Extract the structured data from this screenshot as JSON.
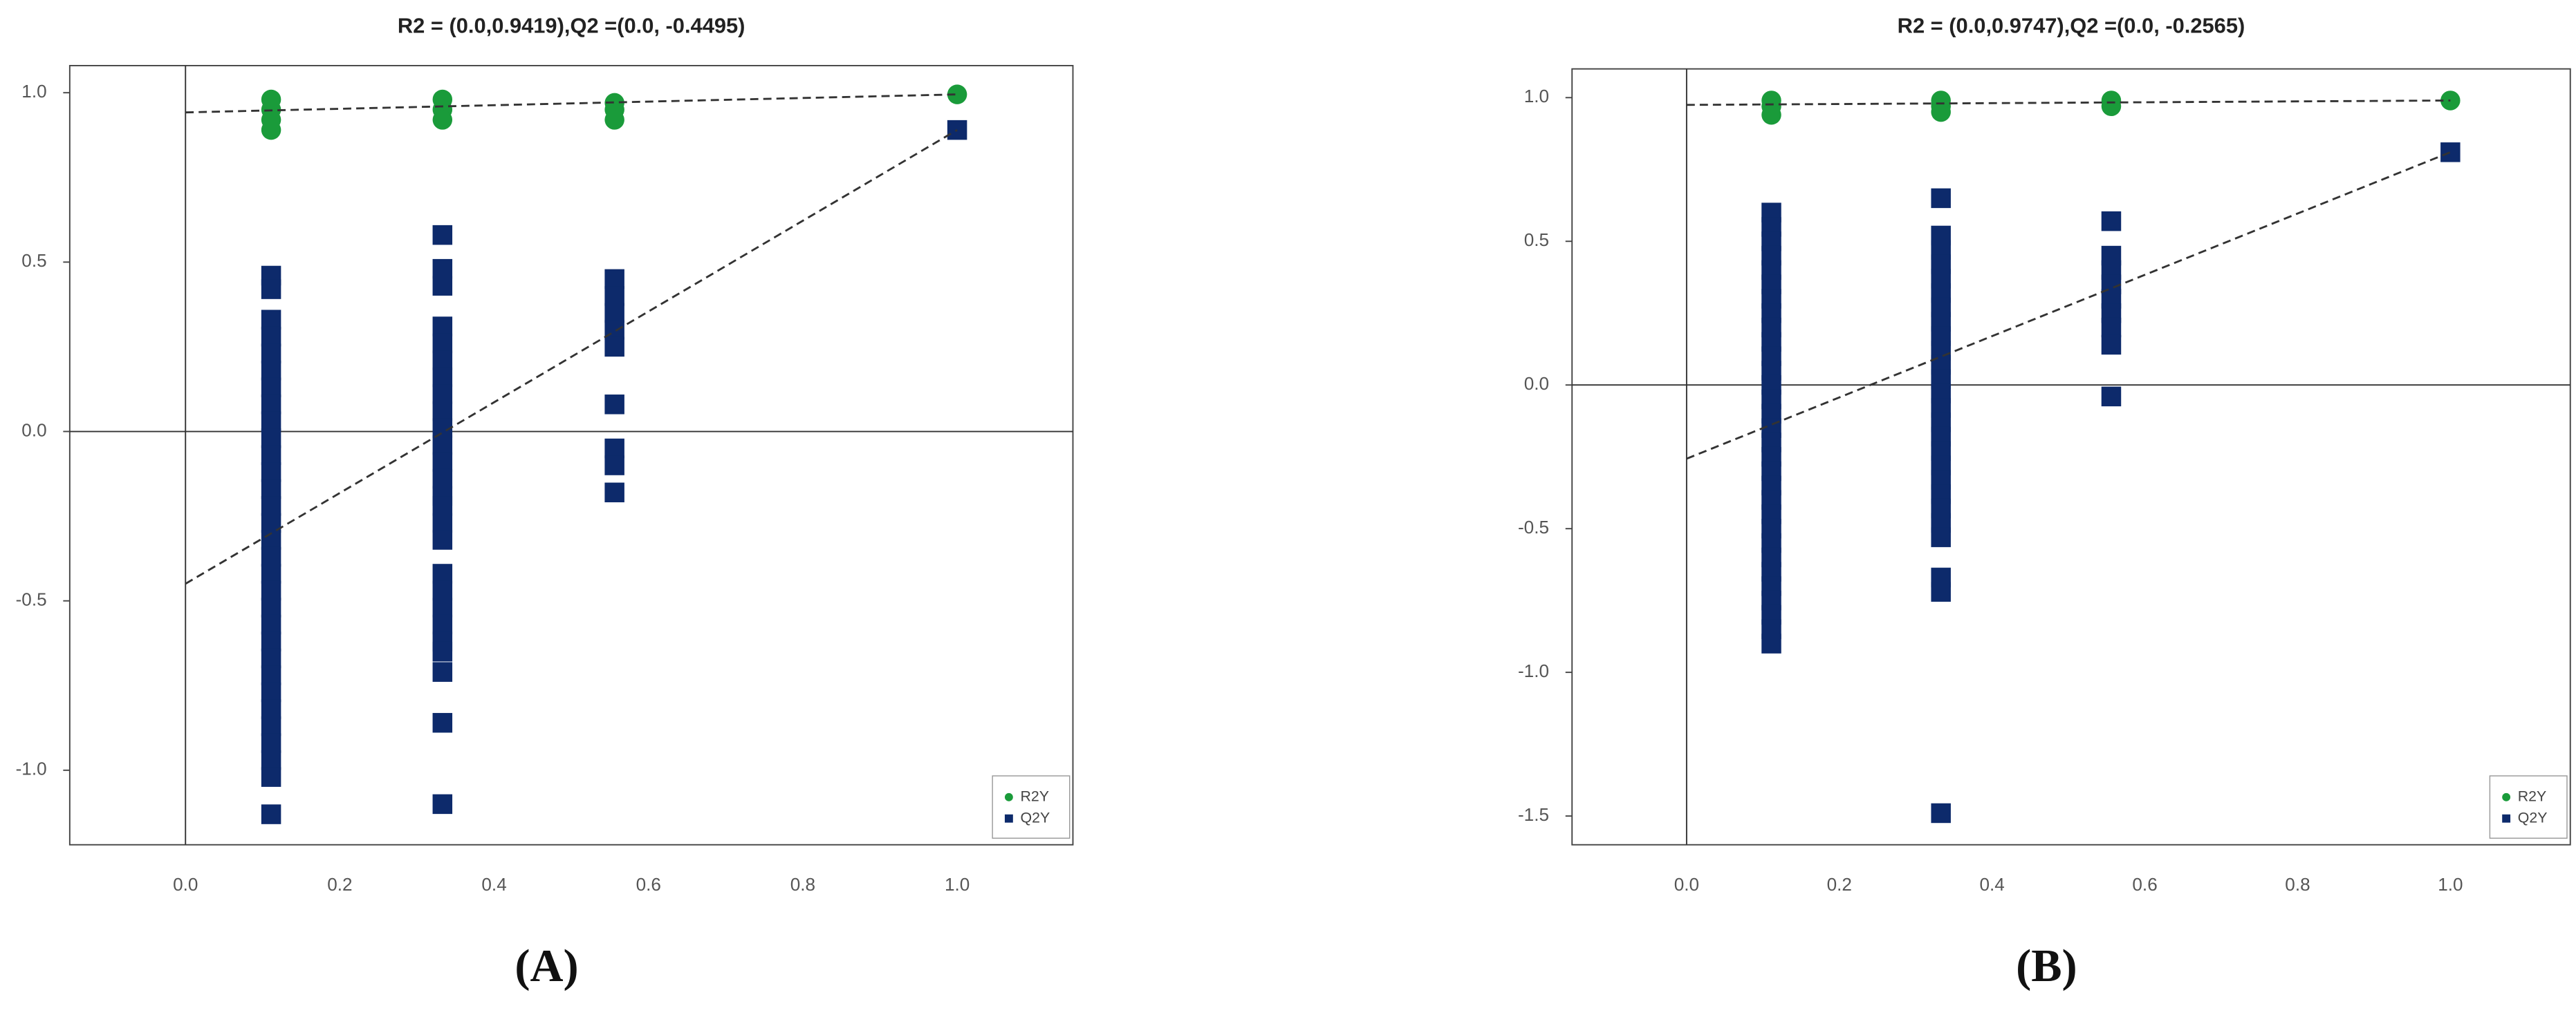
{
  "chart_data": [
    {
      "type": "scatter",
      "title": "R2 = (0.0,0.9419),Q2 =(0.0, -0.4495)",
      "panel_label": "(A)",
      "xlim": [
        -0.15,
        1.15
      ],
      "ylim": [
        -1.22,
        1.08
      ],
      "xticks": [
        {
          "value": 0,
          "label": "0.0"
        },
        0.2,
        0.4,
        0.6,
        0.8,
        {
          "value": 1,
          "label": "1.0"
        }
      ],
      "yticks": [
        {
          "value": -1,
          "label": "-1.0"
        },
        -0.5,
        {
          "value": 0,
          "label": "0.0"
        },
        0.5,
        {
          "value": 1,
          "label": "1.0"
        }
      ],
      "series": [
        {
          "name": "R2Y",
          "color": "#1a9b3a",
          "marker": "circle",
          "x": [
            0.111,
            0.111,
            0.111,
            0.111,
            0.333,
            0.333,
            0.333,
            0.556,
            0.556,
            0.556,
            1.0
          ],
          "values": [
            0.98,
            0.95,
            0.92,
            0.89,
            0.98,
            0.95,
            0.92,
            0.97,
            0.95,
            0.92,
            0.995
          ],
          "fit": {
            "x": [
              0,
              1
            ],
            "y": [
              0.9419,
              0.995
            ]
          }
        },
        {
          "name": "Q2Y",
          "color": "#0d2a6b",
          "marker": "square",
          "x": [
            0.111,
            0.111,
            0.111,
            0.111,
            0.111,
            0.111,
            0.111,
            0.111,
            0.111,
            0.111,
            0.111,
            0.111,
            0.111,
            0.111,
            0.111,
            0.111,
            0.111,
            0.111,
            0.111,
            0.111,
            0.111,
            0.111,
            0.111,
            0.111,
            0.111,
            0.111,
            0.111,
            0.111,
            0.111,
            0.111,
            0.111,
            0.333,
            0.333,
            0.333,
            0.333,
            0.333,
            0.333,
            0.333,
            0.333,
            0.333,
            0.333,
            0.333,
            0.333,
            0.333,
            0.333,
            0.333,
            0.333,
            0.333,
            0.333,
            0.333,
            0.333,
            0.333,
            0.333,
            0.333,
            0.333,
            0.333,
            0.333,
            0.556,
            0.556,
            0.556,
            0.556,
            0.556,
            0.556,
            0.556,
            0.556,
            0.556,
            1.0
          ],
          "values": [
            0.46,
            0.42,
            0.33,
            0.28,
            0.23,
            0.18,
            0.13,
            0.08,
            0.03,
            -0.02,
            -0.07,
            -0.12,
            -0.17,
            -0.22,
            -0.27,
            -0.32,
            -0.37,
            -0.42,
            -0.47,
            -0.52,
            -0.57,
            -0.62,
            -0.67,
            -0.72,
            -0.77,
            -0.82,
            -0.87,
            -0.92,
            -0.97,
            -1.02,
            -1.13,
            0.58,
            0.48,
            0.43,
            0.31,
            0.26,
            0.21,
            0.16,
            0.11,
            0.06,
            0.01,
            -0.04,
            -0.09,
            -0.14,
            -0.19,
            -0.22,
            -0.27,
            -0.32,
            -0.42,
            -0.47,
            -0.52,
            -0.57,
            -0.62,
            -0.65,
            -0.71,
            -0.86,
            -1.1,
            0.45,
            0.4,
            0.35,
            0.3,
            0.25,
            0.08,
            -0.05,
            -0.1,
            -0.18,
            0.89
          ],
          "fit": {
            "x": [
              0,
              1
            ],
            "y": [
              -0.4495,
              0.89
            ]
          }
        }
      ]
    },
    {
      "type": "scatter",
      "title": "R2 = (0.0,0.9747),Q2 =(0.0, -0.2565)",
      "panel_label": "(B)",
      "xlim": [
        -0.15,
        1.157
      ],
      "ylim": [
        -1.6,
        1.1
      ],
      "xticks": [
        {
          "value": 0,
          "label": "0.0"
        },
        0.2,
        0.4,
        0.6,
        0.8,
        {
          "value": 1,
          "label": "1.0"
        }
      ],
      "yticks": [
        -1.5,
        {
          "value": -1,
          "label": "-1.0"
        },
        -0.5,
        {
          "value": 0,
          "label": "0.0"
        },
        0.5,
        {
          "value": 1,
          "label": "1.0"
        }
      ],
      "series": [
        {
          "name": "R2Y",
          "color": "#1a9b3a",
          "marker": "circle",
          "x": [
            0.111,
            0.111,
            0.111,
            0.333,
            0.333,
            0.333,
            0.556,
            0.556,
            1.0
          ],
          "values": [
            0.99,
            0.97,
            0.94,
            0.99,
            0.97,
            0.95,
            0.99,
            0.97,
            0.99
          ],
          "fit": {
            "x": [
              0,
              1
            ],
            "y": [
              0.9747,
              0.99
            ]
          }
        },
        {
          "name": "Q2Y",
          "color": "#0d2a6b",
          "marker": "square",
          "x": [
            0.111,
            0.111,
            0.111,
            0.111,
            0.111,
            0.111,
            0.111,
            0.111,
            0.111,
            0.111,
            0.111,
            0.111,
            0.111,
            0.111,
            0.111,
            0.111,
            0.111,
            0.111,
            0.111,
            0.111,
            0.111,
            0.111,
            0.111,
            0.111,
            0.111,
            0.111,
            0.111,
            0.111,
            0.111,
            0.111,
            0.111,
            0.333,
            0.333,
            0.333,
            0.333,
            0.333,
            0.333,
            0.333,
            0.333,
            0.333,
            0.333,
            0.333,
            0.333,
            0.333,
            0.333,
            0.333,
            0.333,
            0.333,
            0.333,
            0.333,
            0.333,
            0.333,
            0.333,
            0.333,
            0.333,
            0.333,
            0.333,
            0.556,
            0.556,
            0.556,
            0.556,
            0.556,
            0.556,
            0.556,
            0.556,
            0.556,
            1.0
          ],
          "values": [
            0.6,
            0.55,
            0.5,
            0.45,
            0.4,
            0.35,
            0.3,
            0.25,
            0.2,
            0.15,
            0.1,
            0.05,
            0.0,
            -0.05,
            -0.1,
            -0.15,
            -0.2,
            -0.25,
            -0.3,
            -0.35,
            -0.4,
            -0.45,
            -0.5,
            -0.55,
            -0.6,
            -0.65,
            -0.7,
            -0.75,
            -0.8,
            -0.85,
            -0.9,
            0.65,
            0.52,
            0.47,
            0.42,
            0.37,
            0.32,
            0.27,
            0.22,
            0.17,
            0.12,
            0.07,
            0.02,
            -0.03,
            -0.08,
            -0.13,
            -0.18,
            -0.23,
            -0.28,
            -0.33,
            -0.38,
            -0.43,
            -0.48,
            -0.53,
            -0.67,
            -0.72,
            -1.49,
            0.57,
            0.45,
            0.4,
            0.35,
            0.3,
            0.25,
            0.2,
            0.14,
            -0.04,
            0.81
          ],
          "fit": {
            "x": [
              0,
              1
            ],
            "y": [
              -0.2565,
              0.81
            ]
          }
        }
      ]
    }
  ]
}
